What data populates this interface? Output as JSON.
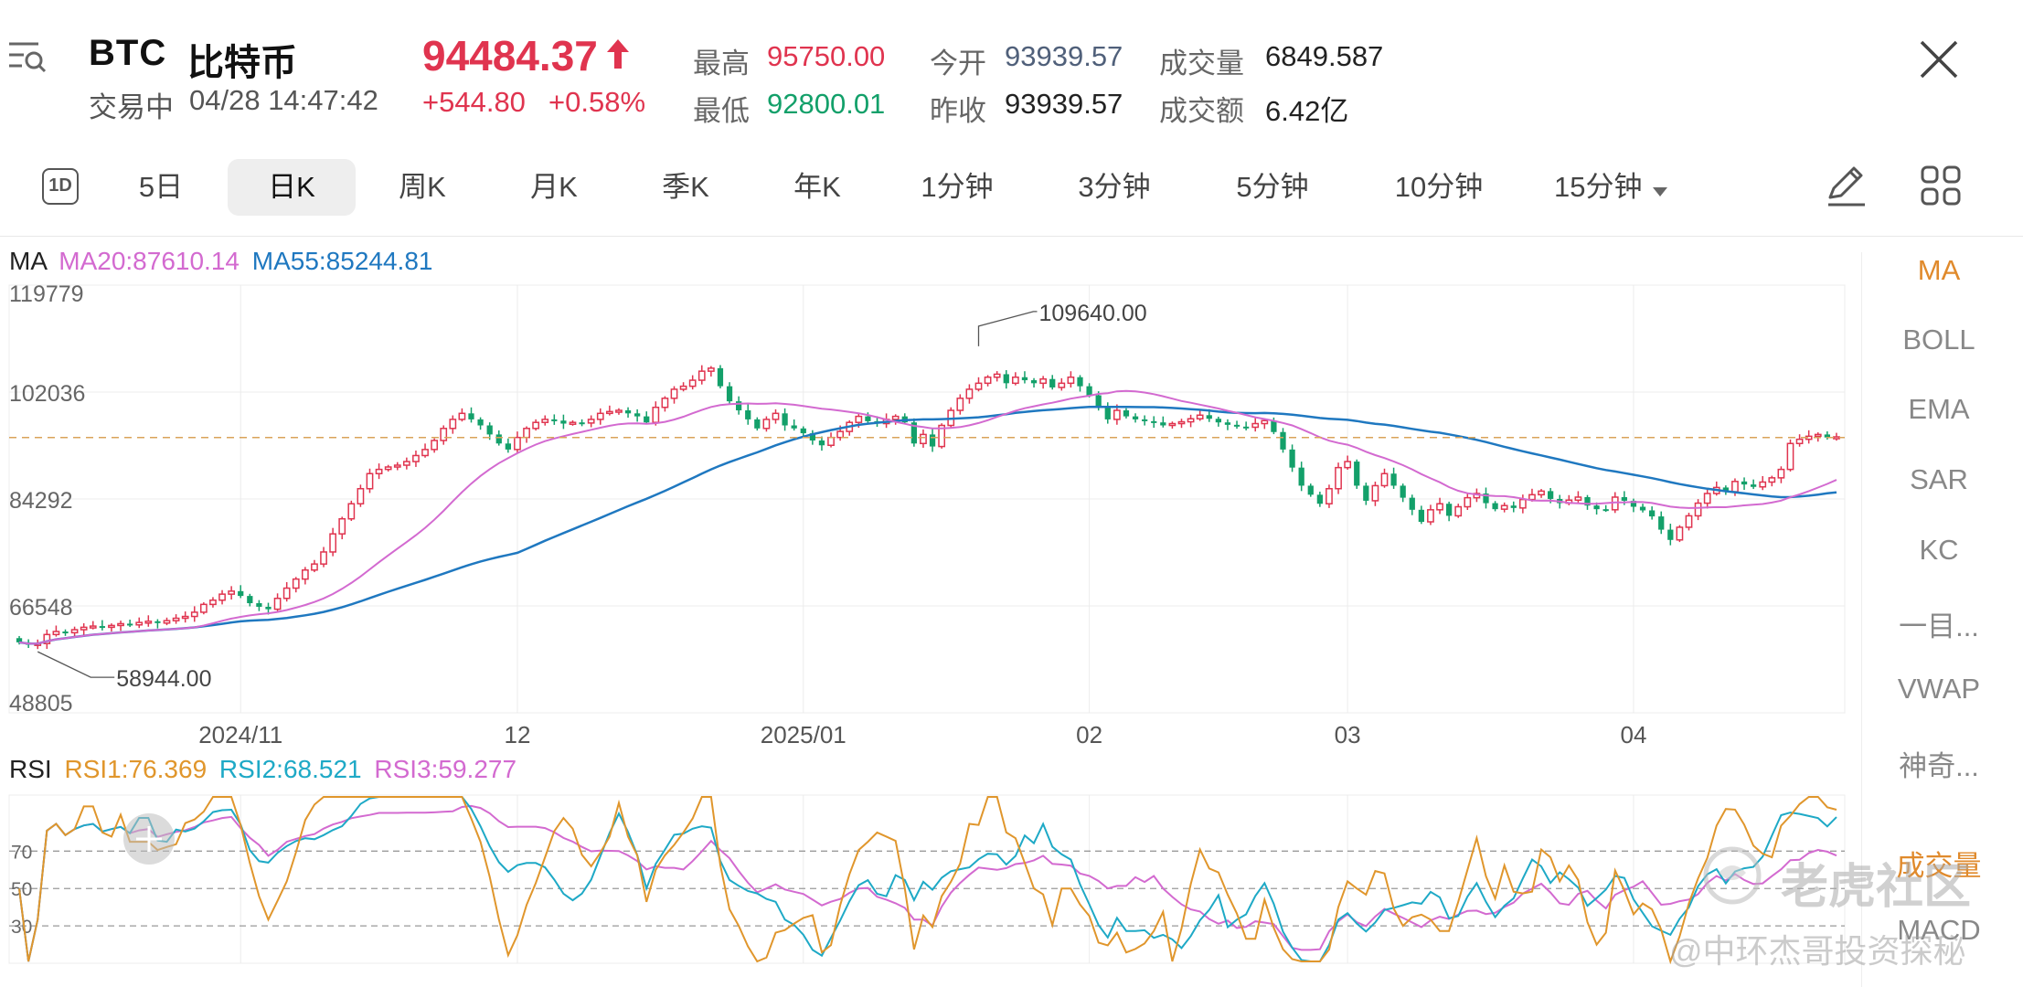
{
  "header": {
    "symbol": "BTC",
    "name": "比特币",
    "status": "交易中",
    "datetime": "04/28 14:47:42",
    "price": "94484.37",
    "change": "+544.80",
    "change_pct": "+0.58%",
    "stats": {
      "high_label": "最高",
      "high_value": "95750.00",
      "low_label": "最低",
      "low_value": "92800.01",
      "open_label": "今开",
      "open_value": "93939.57",
      "prev_close_label": "昨收",
      "prev_close_value": "93939.57",
      "volume_label": "成交量",
      "volume_value": "6849.587",
      "turnover_label": "成交额",
      "turnover_value": "6.42亿"
    },
    "colors": {
      "up": "#e0344f",
      "down": "#13a06a"
    }
  },
  "tabs": {
    "icon_label": "1D",
    "items": [
      "5日",
      "日K",
      "周K",
      "月K",
      "季K",
      "年K",
      "1分钟",
      "3分钟",
      "5分钟",
      "10分钟",
      "15分钟"
    ],
    "active": "日K"
  },
  "side_menu": {
    "items": [
      "MA",
      "BOLL",
      "EMA",
      "SAR",
      "KC",
      "一目...",
      "VWAP",
      "神奇...",
      "成交量",
      "MACD"
    ],
    "active": "MA"
  },
  "watermark": {
    "brand": "老虎社区",
    "author": "@中环杰哥投资探秘"
  },
  "chart_data": [
    {
      "type": "candlestick",
      "legend": {
        "name": "MA",
        "ma20": "MA20:87610.14",
        "ma55": "MA55:85244.81"
      },
      "series_colors": {
        "ma20": "#d36ad0",
        "ma55": "#1f78c0",
        "up": "#e0344f",
        "down": "#13a06a"
      },
      "y_ticks": [
        "119779",
        "102036",
        "84292",
        "66548",
        "48805"
      ],
      "ylim": [
        48805,
        119779
      ],
      "x_labels": [
        {
          "label": "2024/11",
          "index": 24
        },
        {
          "label": "12",
          "index": 54
        },
        {
          "label": "2025/01",
          "index": 85
        },
        {
          "label": "02",
          "index": 116
        },
        {
          "label": "03",
          "index": 144
        },
        {
          "label": "04",
          "index": 175
        }
      ],
      "annotations": {
        "max": {
          "label": "109640.00",
          "index": 104,
          "value": 109640
        },
        "min": {
          "label": "58944.00",
          "index": 2,
          "value": 58944
        }
      },
      "current_price": 94484.37,
      "close": [
        60500,
        60100,
        60300,
        61800,
        62300,
        62100,
        62600,
        63000,
        63200,
        63000,
        63300,
        63600,
        63400,
        63800,
        64000,
        63700,
        64100,
        64500,
        64800,
        65500,
        66800,
        67500,
        68500,
        69000,
        68200,
        67000,
        66400,
        66000,
        67800,
        69500,
        71000,
        72500,
        73500,
        75500,
        78500,
        81000,
        83500,
        86000,
        88500,
        89200,
        89600,
        89900,
        90500,
        91500,
        92500,
        94000,
        96000,
        97500,
        98500,
        97500,
        96500,
        95000,
        93500,
        92500,
        94500,
        96000,
        97000,
        97500,
        97300,
        96800,
        97000,
        96900,
        97500,
        98500,
        98800,
        99000,
        98500,
        98000,
        97000,
        99500,
        101000,
        102500,
        103000,
        104000,
        105500,
        106000,
        103000,
        100500,
        99000,
        97500,
        96000,
        97500,
        98500,
        96500,
        96000,
        95200,
        94000,
        93200,
        94500,
        95500,
        97000,
        98000,
        97200,
        96800,
        97500,
        98000,
        97000,
        93500,
        95000,
        93000,
        96500,
        99000,
        101000,
        102500,
        103500,
        104500,
        105000,
        103500,
        104500,
        104000,
        103500,
        104200,
        102800,
        103500,
        104500,
        103000,
        101500,
        99500,
        97500,
        99000,
        98000,
        97500,
        97200,
        97000,
        96500,
        96800,
        97100,
        97600,
        98200,
        97600,
        97000,
        96600,
        96300,
        96200,
        96800,
        97300,
        95400,
        92500,
        89500,
        86500,
        85000,
        83500,
        86000,
        89500,
        90500,
        86500,
        84000,
        86500,
        88500,
        86500,
        84500,
        82500,
        80500,
        82500,
        83500,
        81500,
        83000,
        84500,
        85200,
        83600,
        82600,
        83200,
        82800,
        84200,
        85000,
        85600,
        84300,
        83600,
        84100,
        84600,
        83200,
        82600,
        82500,
        84600,
        84000,
        83000,
        82400,
        81400,
        79200,
        77500,
        79600,
        81500,
        83600,
        85200,
        86200,
        85500,
        87200,
        86700,
        86300,
        87100,
        87800,
        89200,
        93500,
        94200,
        94700,
        95000,
        94500,
        94600
      ]
    },
    {
      "type": "line",
      "legend": {
        "name": "RSI",
        "rsi1": "RSI1:76.369",
        "rsi2": "RSI2:68.521",
        "rsi3": "RSI3:59.277"
      },
      "series_colors": {
        "rsi1": "#e0962c",
        "rsi2": "#1ea9c6",
        "rsi3": "#d36ad0"
      },
      "y_ticks": [
        "70",
        "50",
        "30"
      ],
      "ylim": [
        10,
        100
      ]
    }
  ]
}
